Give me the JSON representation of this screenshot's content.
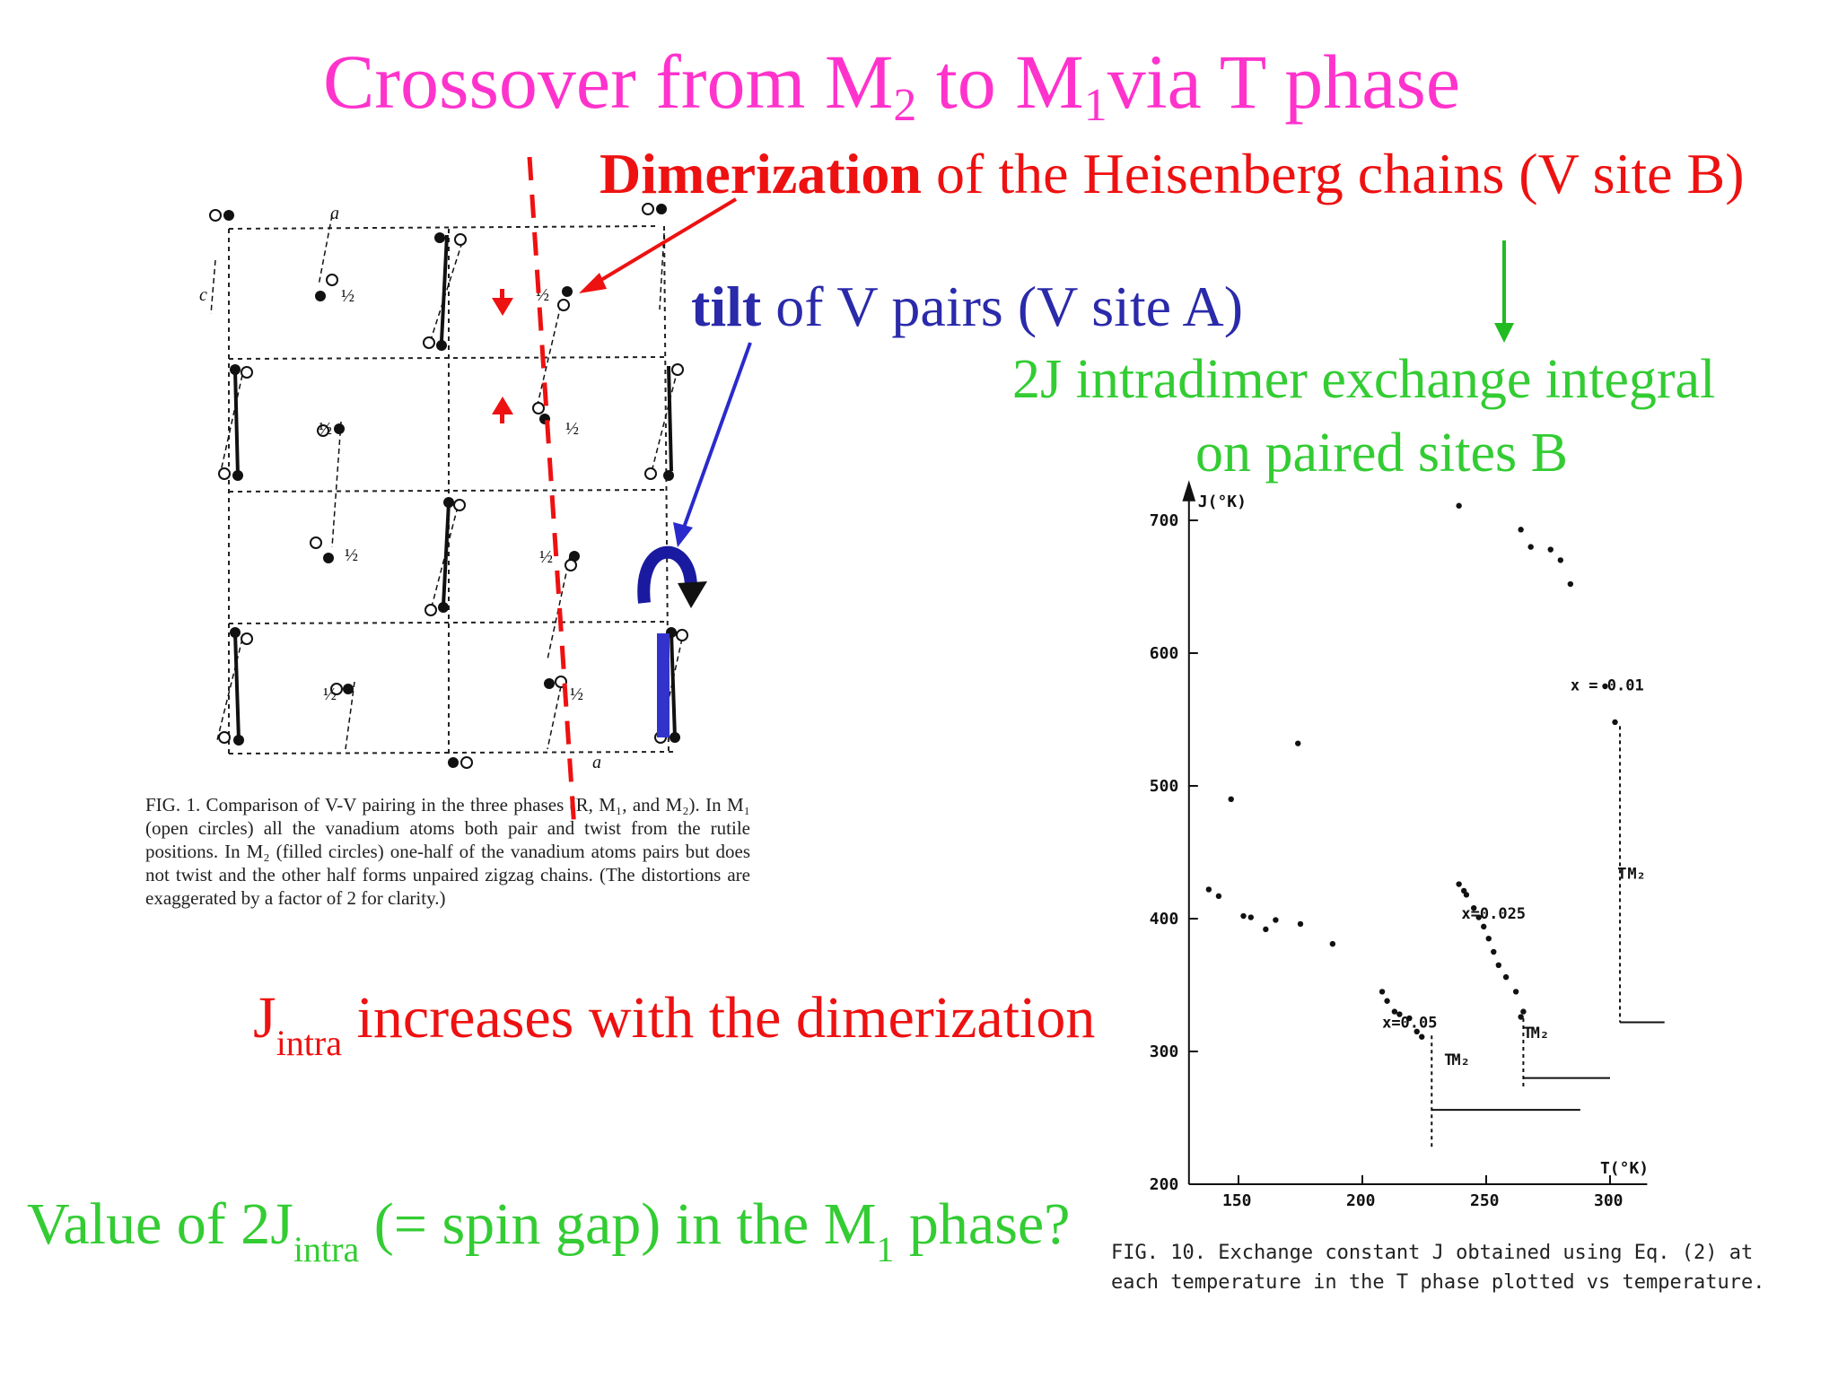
{
  "title": {
    "prefix": "Crossover from M",
    "sub1": "2",
    "middle": " to M",
    "sub2": "1",
    "suffix": "via T phase"
  },
  "annotations": {
    "dimerization_bold": "Dimerization",
    "dimerization_rest": " of the Heisenberg chains (V site B)",
    "tilt_bold": "tilt",
    "tilt_rest": " of V pairs (V site A)",
    "exchange_line1": "2J intradimer exchange integral",
    "exchange_line2": "on paired sites B",
    "jintra_main": "J",
    "jintra_sub": "intra",
    "jintra_rest": " increases with the dimerization",
    "value_prefix": "Value of 2J",
    "value_sub": "intra",
    "value_middle": " (= spin gap) in the M",
    "value_sub2": "1",
    "value_suffix": " phase?"
  },
  "fig1": {
    "caption": "FIG. 1.  Comparison of V-V pairing in the three phases (R, M₁, and M₂).  In M₁ (open circles) all the vanadium atoms both pair and twist from the rutile positions.  In M₂ (filled circles) one-half of the vanadium atoms pairs but does not twist and the other half forms unpaired zigzag chains.  (The distortions are exaggerated by a factor of 2 for clarity.)",
    "label_ar_top": "a",
    "label_ar_bottom": "a",
    "label_cr": "c",
    "half": "½",
    "plus": "+",
    "minus": "-"
  },
  "fig10": {
    "caption_line1": "FIG. 10.  Exchange constant J obtained using Eq. (2) at",
    "caption_line2": "each temperature in the T phase plotted vs temperature."
  },
  "chart_data": {
    "type": "scatter",
    "ylabel": "J(°K)",
    "xlabel": "T(°K)",
    "xlim": [
      130,
      315
    ],
    "ylim": [
      200,
      720
    ],
    "x_ticks": [
      150,
      200,
      250,
      300
    ],
    "y_ticks": [
      200,
      300,
      400,
      500,
      600,
      700
    ],
    "series": [
      {
        "name": "x=0.05",
        "points": [
          [
            138,
            422
          ],
          [
            142,
            417
          ],
          [
            147,
            490
          ],
          [
            152,
            402
          ],
          [
            155,
            401
          ],
          [
            161,
            392
          ],
          [
            165,
            399
          ],
          [
            174,
            532
          ],
          [
            175,
            396
          ],
          [
            188,
            381
          ],
          [
            208,
            345
          ],
          [
            210,
            338
          ],
          [
            213,
            330
          ],
          [
            215,
            328
          ],
          [
            219,
            325
          ],
          [
            222,
            315
          ],
          [
            224,
            311
          ]
        ]
      },
      {
        "name": "x=0.025",
        "points": [
          [
            239,
            426
          ],
          [
            241,
            421
          ],
          [
            242,
            418
          ],
          [
            245,
            408
          ],
          [
            247,
            401
          ],
          [
            249,
            394
          ],
          [
            251,
            385
          ],
          [
            253,
            375
          ],
          [
            255,
            365
          ],
          [
            258,
            356
          ],
          [
            262,
            345
          ],
          [
            265,
            330
          ],
          [
            264,
            326
          ]
        ]
      },
      {
        "name": "x=0.01",
        "points": [
          [
            239,
            711
          ],
          [
            264,
            693
          ],
          [
            268,
            680
          ],
          [
            276,
            678
          ],
          [
            280,
            670
          ],
          [
            284,
            652
          ],
          [
            298,
            575
          ],
          [
            302,
            548
          ]
        ]
      }
    ],
    "annotations": [
      {
        "text": "x=0.05",
        "x": 208,
        "y": 318
      },
      {
        "text": "x=0.025",
        "x": 240,
        "y": 400
      },
      {
        "text": "x = 0.01",
        "x": 284,
        "y": 572
      },
      {
        "text": "T",
        "x": 233,
        "y": 290
      },
      {
        "text": "M₂",
        "x": 236,
        "y": 290
      },
      {
        "text": "T",
        "x": 265,
        "y": 310
      },
      {
        "text": "M₂",
        "x": 268,
        "y": 310
      },
      {
        "text": "T",
        "x": 303,
        "y": 430
      },
      {
        "text": "M₂",
        "x": 307,
        "y": 430
      }
    ],
    "transitions": [
      {
        "x": 228,
        "y_top": 312,
        "y_bottom": 228,
        "level": 256,
        "x_end": 288
      },
      {
        "x": 265,
        "y_top": 325,
        "y_bottom": 272,
        "level": 280,
        "x_end": 300
      },
      {
        "x": 304,
        "y_top": 545,
        "y_bottom": 322,
        "level": 322,
        "x_end": 322
      }
    ]
  }
}
